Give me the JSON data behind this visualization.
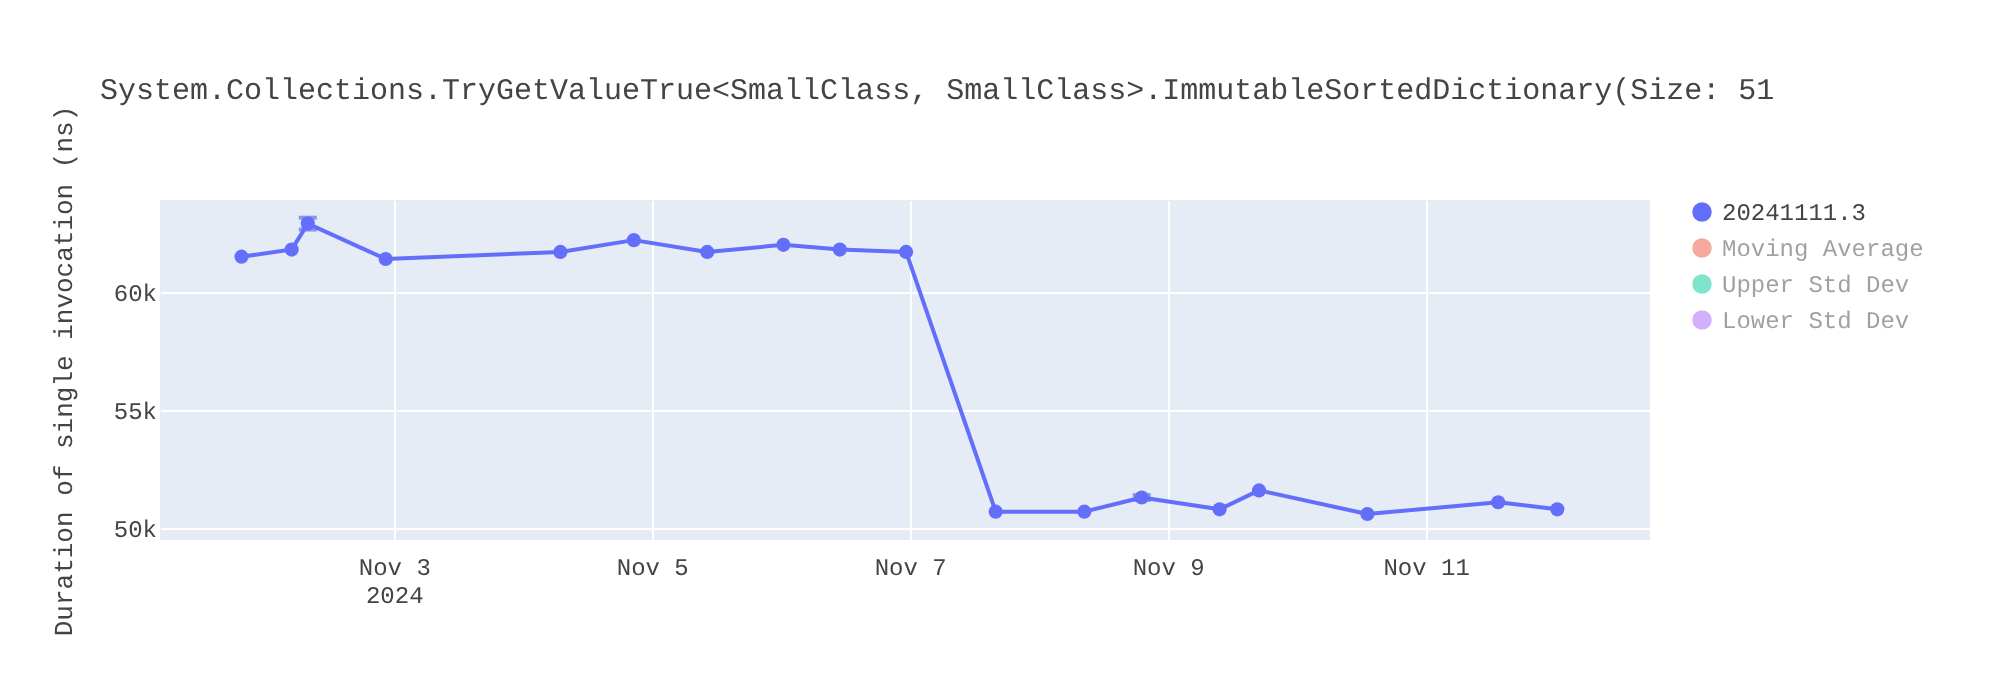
{
  "chart_data": {
    "type": "line",
    "title": "System.Collections.TryGetValueTrue<SmallClass, SmallClass>.ImmutableSortedDictionary(Size: 51",
    "ylabel": "Duration of single invocation (ns)",
    "x": [
      "2024-11-01T19:40",
      "2024-11-02T05:00",
      "2024-11-02T08:00",
      "2024-11-02T22:30",
      "2024-11-04T07:00",
      "2024-11-04T20:40",
      "2024-11-05T10:20",
      "2024-11-06T00:30",
      "2024-11-06T11:00",
      "2024-11-06T23:20",
      "2024-11-07T16:00",
      "2024-11-08T08:30",
      "2024-11-08T19:10",
      "2024-11-09T09:40",
      "2024-11-09T17:00",
      "2024-11-10T13:10",
      "2024-11-11T13:30",
      "2024-11-12T00:30"
    ],
    "series": [
      {
        "name": "20241111.3",
        "color": "#636efa",
        "values": [
          61500,
          61800,
          62900,
          61400,
          61700,
          62200,
          61700,
          62000,
          61800,
          61700,
          50700,
          50700,
          51300,
          50800,
          51600,
          50600,
          51100,
          50800
        ],
        "errors": [
          null,
          null,
          250,
          null,
          null,
          null,
          null,
          null,
          null,
          null,
          null,
          null,
          100,
          null,
          null,
          null,
          null,
          null
        ]
      },
      {
        "name": "Moving Average",
        "color": "#ef553b",
        "values": [
          null,
          null,
          null,
          null,
          null,
          null,
          null,
          null,
          null,
          null,
          null,
          null,
          null,
          null,
          null,
          null,
          null,
          null
        ]
      },
      {
        "name": "Upper Std Dev",
        "color": "#00cc96",
        "values": [
          null,
          null,
          null,
          null,
          null,
          null,
          null,
          null,
          null,
          null,
          null,
          null,
          null,
          null,
          null,
          null,
          null,
          null
        ]
      },
      {
        "name": "Lower Std Dev",
        "color": "#ab63fa",
        "values": [
          null,
          null,
          null,
          null,
          null,
          null,
          null,
          null,
          null,
          null,
          null,
          null,
          null,
          null,
          null,
          null,
          null,
          null
        ]
      }
    ],
    "xlim": [
      "2024-11-01T04:30",
      "2024-11-12T17:45"
    ],
    "xticks": [
      {
        "value": "2024-11-03",
        "label": "Nov 3\n2024"
      },
      {
        "value": "2024-11-05",
        "label": "Nov 5"
      },
      {
        "value": "2024-11-07",
        "label": "Nov 7"
      },
      {
        "value": "2024-11-09",
        "label": "Nov 9"
      },
      {
        "value": "2024-11-11",
        "label": "Nov 11"
      }
    ],
    "ylim": [
      49500,
      63900
    ],
    "yticks": [
      {
        "value": 50000,
        "label": "50k"
      },
      {
        "value": 55000,
        "label": "55k"
      },
      {
        "value": 60000,
        "label": "60k"
      }
    ],
    "grid": true,
    "legend": "right",
    "marker": "circle",
    "line_style": "solid"
  }
}
